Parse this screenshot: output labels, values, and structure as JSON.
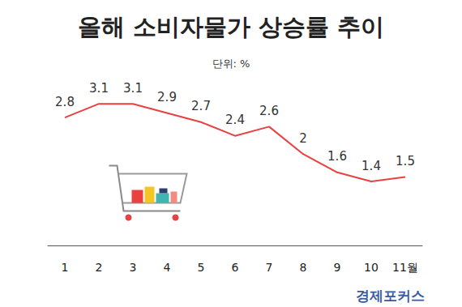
{
  "chart_data": {
    "type": "line",
    "title": "올해 소비자물가 상승률 추이",
    "subtitle": "단위: %",
    "categories": [
      "1",
      "2",
      "3",
      "4",
      "5",
      "6",
      "7",
      "8",
      "9",
      "10",
      "11월"
    ],
    "values": [
      2.8,
      3.1,
      3.1,
      2.9,
      2.7,
      2.4,
      2.6,
      2,
      1.6,
      1.4,
      1.5
    ],
    "color": "#e8413f",
    "ylim": [
      0,
      3.6
    ],
    "grid": false,
    "data_labels": true,
    "tick_labels": "x",
    "annotations": [
      "경제포커스"
    ]
  }
}
